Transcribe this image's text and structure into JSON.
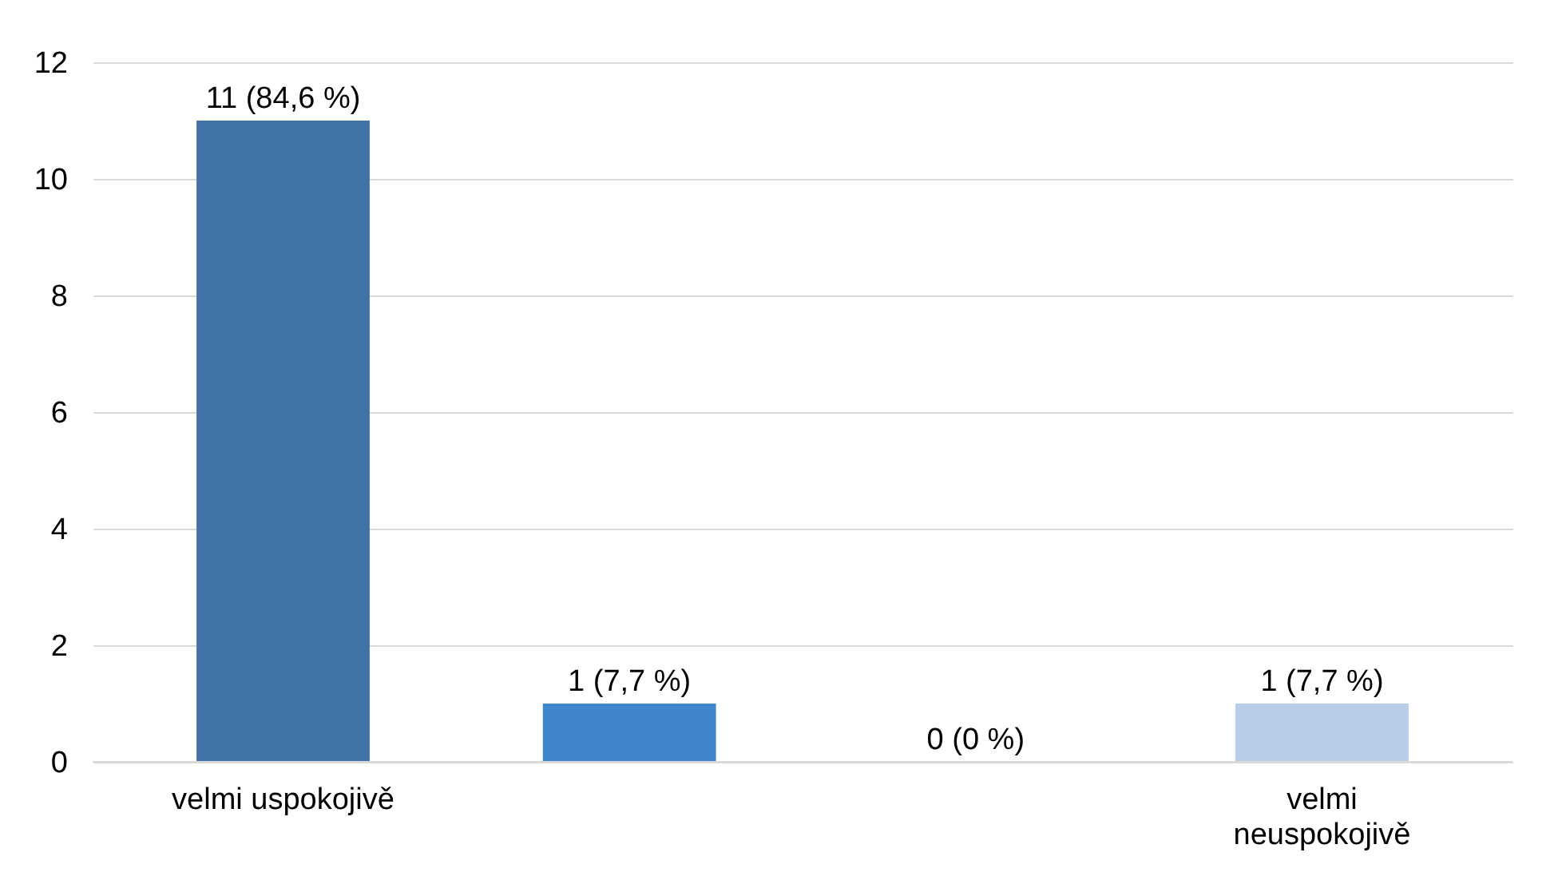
{
  "chart_data": {
    "type": "bar",
    "categories": [
      "velmi uspokojivě",
      null,
      null,
      "velmi neuspokojivě"
    ],
    "values": [
      11,
      1,
      0,
      1
    ],
    "colors": [
      "#4273a8",
      "#3f86cc",
      "#4a7fc0",
      "#b7cde9"
    ],
    "value_labels": [
      "11 (84,6 %)",
      "1 (7,7 %)",
      "0 (0 %)",
      "1 (7,7 %)"
    ],
    "ylim": [
      0,
      12
    ],
    "yticks": [
      0,
      2,
      4,
      6,
      8,
      10,
      12
    ],
    "grid": "y",
    "legend": false
  }
}
